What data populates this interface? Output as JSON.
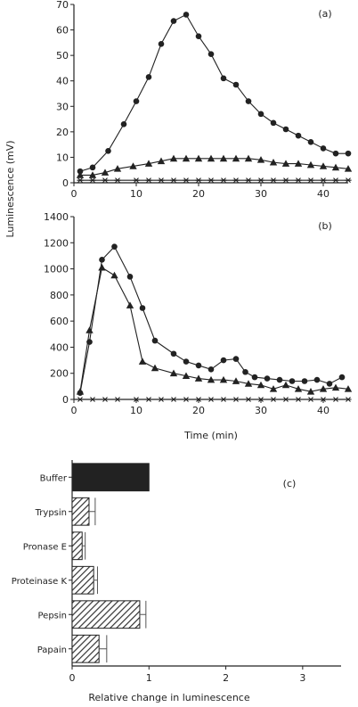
{
  "chart_data": [
    {
      "type": "line",
      "panel_label": "(a)",
      "ylabel": "Luminescence (mV)",
      "xlim": [
        0,
        44
      ],
      "ylim": [
        0,
        70
      ],
      "xticks": [
        0,
        10,
        20,
        30,
        40
      ],
      "yticks": [
        0,
        10,
        20,
        30,
        40,
        50,
        60,
        70
      ],
      "grid": false,
      "series": [
        {
          "marker": "circle",
          "x": [
            1,
            3,
            5.5,
            8,
            10,
            12,
            14,
            16,
            18,
            20,
            22,
            24,
            26,
            28,
            30,
            32,
            34,
            36,
            38,
            40,
            42,
            44
          ],
          "y": [
            4.5,
            6,
            12.5,
            23,
            32,
            41.5,
            54.5,
            63.5,
            66,
            57.5,
            50.5,
            41,
            38.5,
            32,
            27,
            23.5,
            21,
            18.5,
            16,
            13.5,
            11.5,
            11.5
          ]
        },
        {
          "marker": "triangle",
          "x": [
            1,
            3,
            5,
            7,
            9.5,
            12,
            14,
            16,
            18,
            20,
            22,
            24,
            26,
            28,
            30,
            32,
            34,
            36,
            38,
            40,
            42,
            44
          ],
          "y": [
            3,
            3,
            4,
            5.5,
            6.5,
            7.5,
            8.5,
            9.5,
            9.5,
            9.5,
            9.5,
            9.5,
            9.5,
            9.5,
            9,
            8,
            7.5,
            7.5,
            7,
            6.5,
            6,
            5.5
          ]
        },
        {
          "marker": "star",
          "x": [
            1,
            3,
            5,
            7,
            10,
            12,
            14,
            16,
            18,
            20,
            22,
            24,
            26,
            28,
            30,
            32,
            34,
            36,
            38,
            40,
            42,
            44
          ],
          "y": [
            1,
            1,
            1,
            1,
            1,
            1,
            1,
            1,
            1,
            1,
            1,
            1,
            1,
            1,
            1,
            1,
            1,
            1,
            1,
            1,
            1,
            1
          ]
        }
      ]
    },
    {
      "type": "line",
      "panel_label": "(b)",
      "xlabel": "Time (min)",
      "xlim": [
        0,
        44
      ],
      "ylim": [
        0,
        1400
      ],
      "xticks": [
        0,
        10,
        20,
        30,
        40
      ],
      "yticks": [
        0,
        200,
        400,
        600,
        800,
        1000,
        1200,
        1400
      ],
      "grid": false,
      "series": [
        {
          "marker": "circle",
          "x": [
            1,
            2.5,
            4.5,
            6.5,
            9,
            11,
            13,
            16,
            18,
            20,
            22,
            24,
            26,
            27.5,
            29,
            31,
            33,
            35,
            37,
            39,
            41,
            43
          ],
          "y": [
            50,
            440,
            1070,
            1170,
            940,
            700,
            450,
            350,
            290,
            260,
            230,
            300,
            310,
            210,
            170,
            160,
            150,
            140,
            140,
            150,
            120,
            170
          ]
        },
        {
          "marker": "triangle",
          "x": [
            1,
            2.5,
            4.5,
            6.5,
            9,
            11,
            13,
            16,
            18,
            20,
            22,
            24,
            26,
            28,
            30,
            32,
            34,
            36,
            38,
            40,
            42,
            44
          ],
          "y": [
            60,
            530,
            1010,
            950,
            720,
            290,
            240,
            200,
            180,
            160,
            150,
            150,
            140,
            120,
            110,
            80,
            110,
            80,
            60,
            80,
            90,
            80
          ]
        },
        {
          "marker": "star",
          "x": [
            1,
            3,
            5,
            7,
            10,
            12,
            14,
            16,
            18,
            20,
            22,
            24,
            26,
            28,
            30,
            32,
            34,
            36,
            38,
            40,
            42,
            44
          ],
          "y": [
            0,
            0,
            0,
            0,
            0,
            0,
            0,
            0,
            0,
            0,
            0,
            0,
            0,
            0,
            0,
            0,
            0,
            0,
            0,
            0,
            0,
            0
          ]
        }
      ]
    },
    {
      "type": "bar",
      "orientation": "horizontal",
      "panel_label": "(c)",
      "xlabel": "Relative change in luminescence",
      "xlim": [
        0,
        3.5
      ],
      "xticks": [
        0,
        1,
        2,
        3
      ],
      "categories": [
        "Buffer",
        "Trypsin",
        "Pronase E",
        "Proteinase K",
        "Pepsin",
        "Papain"
      ],
      "values": [
        1.0,
        0.22,
        0.13,
        0.28,
        0.88,
        0.35
      ],
      "errors": [
        0,
        0.08,
        0.04,
        0.05,
        0.08,
        0.1
      ],
      "fills": [
        "solid",
        "hatched",
        "hatched",
        "hatched",
        "hatched",
        "hatched"
      ]
    }
  ]
}
